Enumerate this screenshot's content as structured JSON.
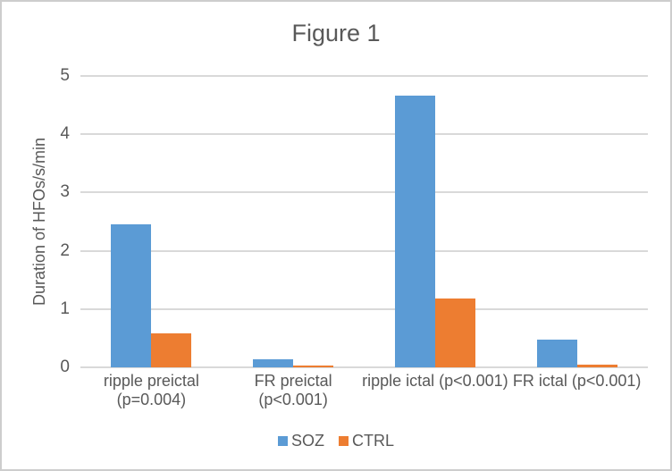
{
  "chart_data": {
    "type": "bar",
    "title": "Figure 1",
    "xlabel": "",
    "ylabel": "Duration of HFOs/s/min",
    "ylim": [
      0,
      5
    ],
    "yticks": [
      0,
      1,
      2,
      3,
      4,
      5
    ],
    "grid": true,
    "legend_position": "bottom",
    "categories": [
      "ripple preictal (p=0.004)",
      "FR preictal (p<0.001)",
      "ripple ictal (p<0.001)",
      "FR ictal (p<0.001)"
    ],
    "series": [
      {
        "name": "SOZ",
        "color": "#5B9BD5",
        "values": [
          2.45,
          0.14,
          4.67,
          0.47
        ]
      },
      {
        "name": "CTRL",
        "color": "#ED7D31",
        "values": [
          0.58,
          0.03,
          1.18,
          0.05
        ]
      }
    ],
    "colors": {
      "text": "#595959",
      "gridline": "#d9d9d9",
      "axis_line": "#d9d9d9",
      "border": "#cdcdcd",
      "background": "#ffffff"
    }
  }
}
